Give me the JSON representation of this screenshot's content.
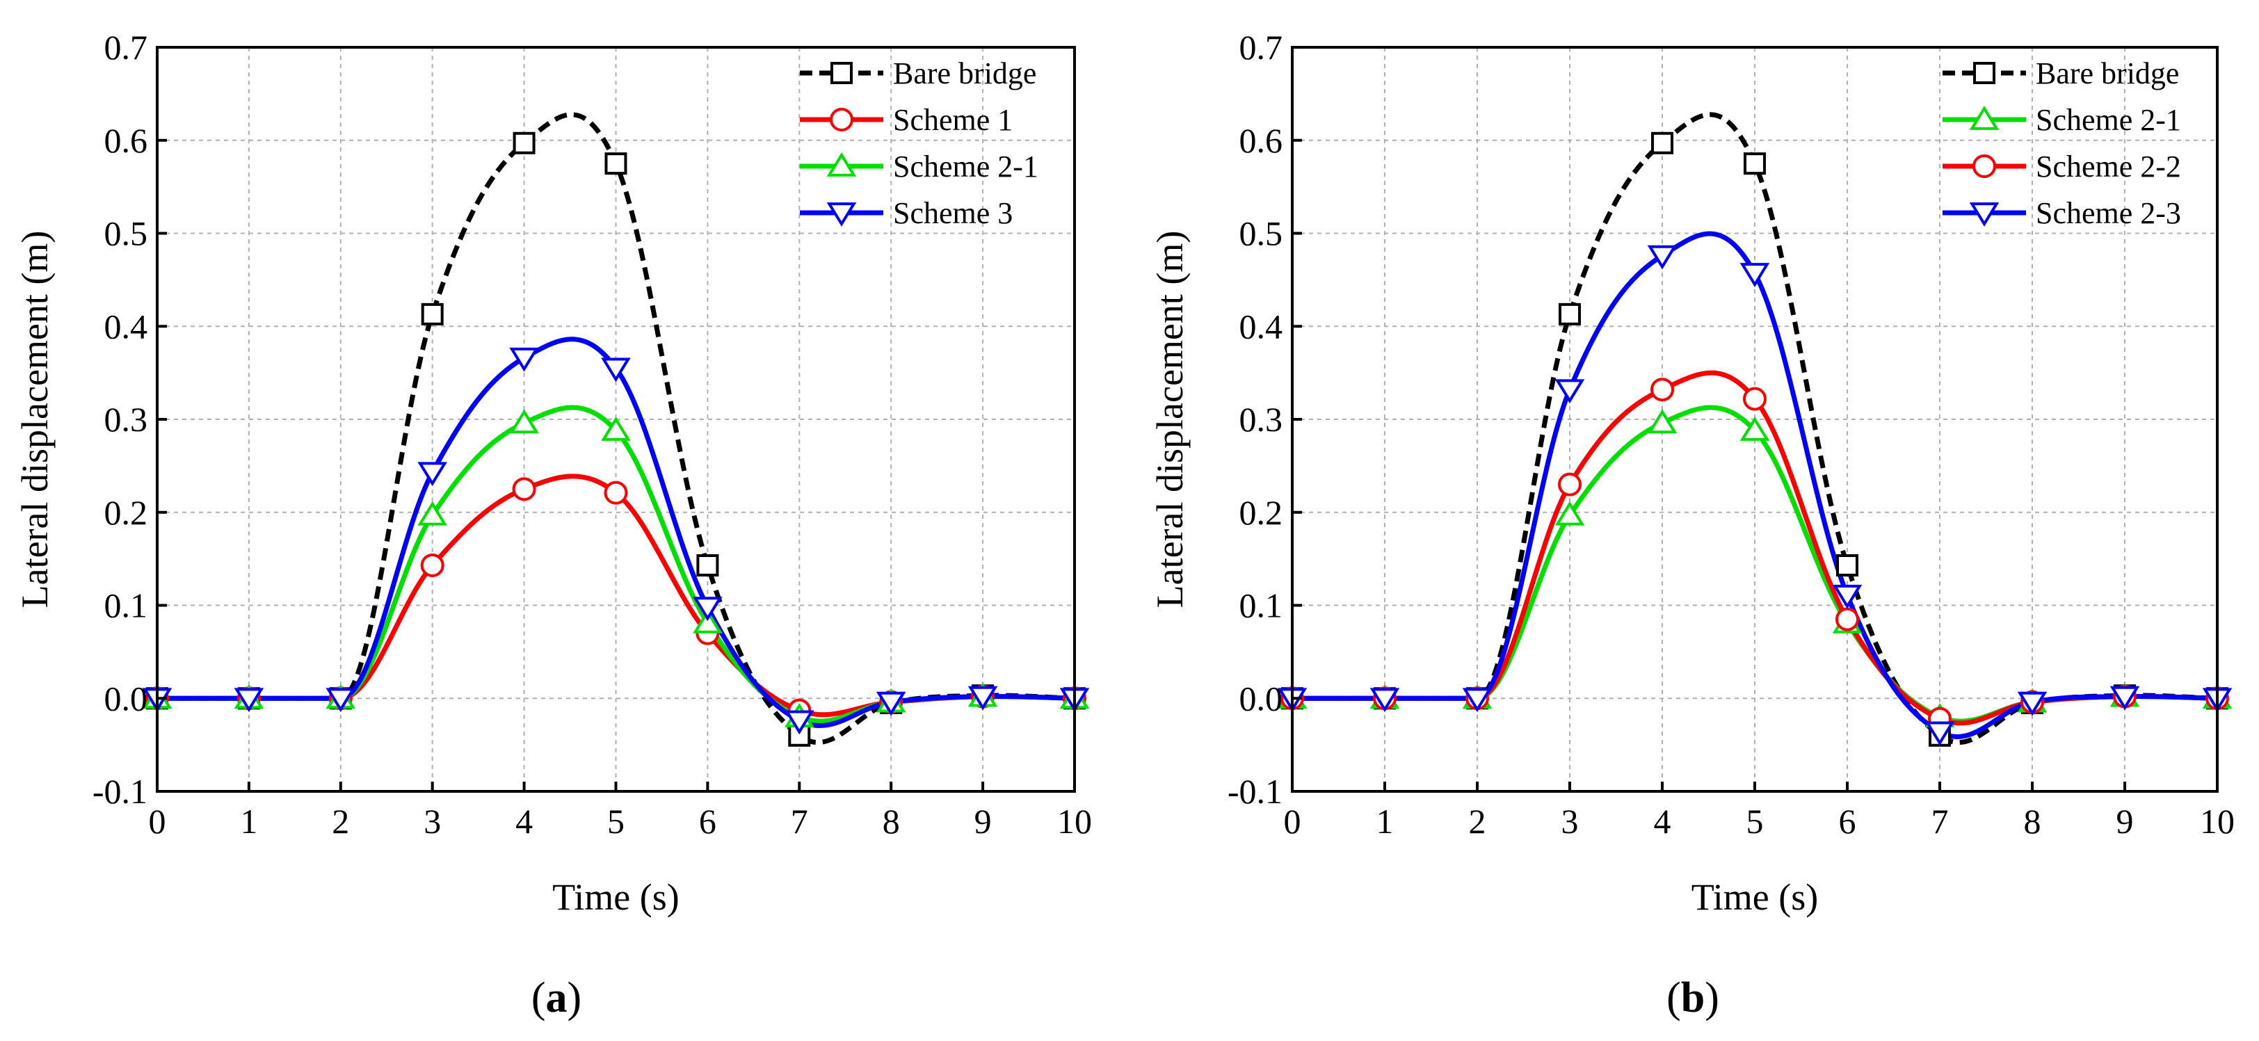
{
  "chart_data": [
    {
      "type": "line",
      "panel": "a",
      "panel_label": "(a)",
      "xlabel": "Time (s)",
      "ylabel": "Lateral displacement (m)",
      "xlim": [
        0,
        10
      ],
      "ylim": [
        -0.1,
        0.7
      ],
      "xticks": [
        0,
        1,
        2,
        3,
        4,
        5,
        6,
        7,
        8,
        9,
        10
      ],
      "yticks": [
        -0.1,
        0.0,
        0.1,
        0.2,
        0.3,
        0.4,
        0.5,
        0.6,
        0.7
      ],
      "ytick_labels": [
        "-0.1",
        "0.0",
        "0.1",
        "0.2",
        "0.3",
        "0.4",
        "0.5",
        "0.6",
        "0.7"
      ],
      "grid": true,
      "legend_position": "top-right",
      "series": [
        {
          "name": "Bare bridge",
          "color": "#000000",
          "dashed": true,
          "marker": "square",
          "x": [
            0,
            1,
            2,
            3,
            4,
            5,
            6,
            7,
            8,
            9,
            10
          ],
          "y": [
            0,
            0,
            0,
            0.413,
            0.597,
            0.575,
            0.143,
            -0.04,
            -0.005,
            0.003,
            0
          ]
        },
        {
          "name": "Scheme 1",
          "color": "#ff0000",
          "dashed": false,
          "marker": "circle",
          "x": [
            0,
            1,
            2,
            3,
            4,
            5,
            6,
            7,
            8,
            9,
            10
          ],
          "y": [
            0,
            0,
            0,
            0.143,
            0.225,
            0.221,
            0.07,
            -0.013,
            -0.004,
            0.002,
            0
          ]
        },
        {
          "name": "Scheme 2-1",
          "color": "#00e000",
          "dashed": false,
          "marker": "triangle-up",
          "x": [
            0,
            1,
            2,
            3,
            4,
            5,
            6,
            7,
            8,
            9,
            10
          ],
          "y": [
            0,
            0,
            0,
            0.197,
            0.296,
            0.288,
            0.081,
            -0.02,
            -0.004,
            0.002,
            0
          ]
        },
        {
          "name": "Scheme 3",
          "color": "#0000ff",
          "dashed": false,
          "marker": "triangle-down",
          "x": [
            0,
            1,
            2,
            3,
            4,
            5,
            6,
            7,
            8,
            9,
            10
          ],
          "y": [
            0,
            0,
            0,
            0.243,
            0.366,
            0.355,
            0.098,
            -0.024,
            -0.004,
            0.002,
            0
          ]
        }
      ]
    },
    {
      "type": "line",
      "panel": "b",
      "panel_label": "(b)",
      "xlabel": "Time (s)",
      "ylabel": "Lateral displacement (m)",
      "xlim": [
        0,
        10
      ],
      "ylim": [
        -0.1,
        0.7
      ],
      "xticks": [
        0,
        1,
        2,
        3,
        4,
        5,
        6,
        7,
        8,
        9,
        10
      ],
      "yticks": [
        -0.1,
        0.0,
        0.1,
        0.2,
        0.3,
        0.4,
        0.5,
        0.6,
        0.7
      ],
      "ytick_labels": [
        "-0.1",
        "0.0",
        "0.1",
        "0.2",
        "0.3",
        "0.4",
        "0.5",
        "0.6",
        "0.7"
      ],
      "grid": true,
      "legend_position": "top-right",
      "series": [
        {
          "name": "Bare bridge",
          "color": "#000000",
          "dashed": true,
          "marker": "square",
          "x": [
            0,
            1,
            2,
            3,
            4,
            5,
            6,
            7,
            8,
            9,
            10
          ],
          "y": [
            0,
            0,
            0,
            0.413,
            0.597,
            0.575,
            0.143,
            -0.04,
            -0.005,
            0.003,
            0
          ]
        },
        {
          "name": "Scheme 2-1",
          "color": "#00e000",
          "dashed": false,
          "marker": "triangle-up",
          "x": [
            0,
            1,
            2,
            3,
            4,
            5,
            6,
            7,
            8,
            9,
            10
          ],
          "y": [
            0,
            0,
            0,
            0.197,
            0.296,
            0.288,
            0.081,
            -0.02,
            -0.004,
            0.002,
            0
          ]
        },
        {
          "name": "Scheme 2-2",
          "color": "#ff0000",
          "dashed": false,
          "marker": "circle",
          "x": [
            0,
            1,
            2,
            3,
            4,
            5,
            6,
            7,
            8,
            9,
            10
          ],
          "y": [
            0,
            0,
            0,
            0.23,
            0.332,
            0.322,
            0.085,
            -0.022,
            -0.004,
            0.002,
            0
          ]
        },
        {
          "name": "Scheme 2-3",
          "color": "#0000ff",
          "dashed": false,
          "marker": "triangle-down",
          "x": [
            0,
            1,
            2,
            3,
            4,
            5,
            6,
            7,
            8,
            9,
            10
          ],
          "y": [
            0,
            0,
            0,
            0.332,
            0.476,
            0.457,
            0.111,
            -0.036,
            -0.004,
            0.002,
            0
          ]
        }
      ]
    }
  ]
}
